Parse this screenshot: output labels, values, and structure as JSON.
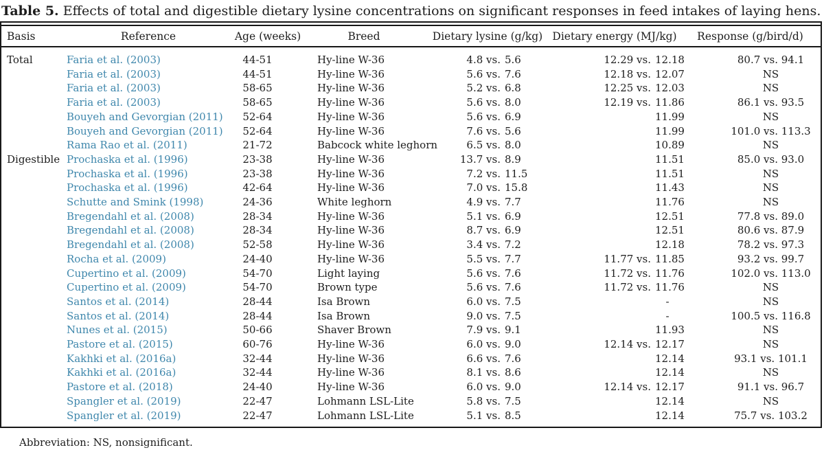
{
  "title": {
    "label": "Table 5.",
    "text": "Effects of total and digestible dietary lysine concentrations on significant responses in feed intakes of laying hens."
  },
  "columns": [
    "Basis",
    "Reference",
    "Age (weeks)",
    "Breed",
    "Dietary lysine (g/kg)",
    "Dietary energy (MJ/kg)",
    "Response (g/bird/d)"
  ],
  "rows": [
    {
      "basis": "Total",
      "reference": "Faria et al. (2003)",
      "age": "44-51",
      "breed": "Hy-line W-36",
      "lysine": "4.8 vs. 5.6",
      "energy": "12.29 vs. 12.18",
      "response": "80.7 vs. 94.1"
    },
    {
      "basis": "",
      "reference": "Faria et al. (2003)",
      "age": "44-51",
      "breed": "Hy-line W-36",
      "lysine": "5.6 vs. 7.6",
      "energy": "12.18 vs. 12.07",
      "response": "NS"
    },
    {
      "basis": "",
      "reference": "Faria et al. (2003)",
      "age": "58-65",
      "breed": "Hy-line W-36",
      "lysine": "5.2 vs. 6.8",
      "energy": "12.25 vs. 12.03",
      "response": "NS"
    },
    {
      "basis": "",
      "reference": "Faria et al. (2003)",
      "age": "58-65",
      "breed": "Hy-line W-36",
      "lysine": "5.6 vs. 8.0",
      "energy": "12.19 vs. 11.86",
      "response": "86.1 vs. 93.5"
    },
    {
      "basis": "",
      "reference": "Bouyeh and Gevorgian (2011)",
      "age": "52-64",
      "breed": "Hy-line W-36",
      "lysine": "5.6 vs. 6.9",
      "energy": "11.99",
      "response": "NS"
    },
    {
      "basis": "",
      "reference": "Bouyeh and Gevorgian (2011)",
      "age": "52-64",
      "breed": "Hy-line W-36",
      "lysine": "7.6 vs. 5.6",
      "energy": "11.99",
      "response": "101.0 vs. 113.3"
    },
    {
      "basis": "",
      "reference": "Rama Rao et al. (2011)",
      "age": "21-72",
      "breed": "Babcock white leghorn",
      "lysine": "6.5 vs. 8.0",
      "energy": "10.89",
      "response": "NS"
    },
    {
      "basis": "Digestible",
      "reference": "Prochaska et al. (1996)",
      "age": "23-38",
      "breed": "Hy-line W-36",
      "lysine": "13.7 vs. 8.9",
      "energy": "11.51",
      "response": "85.0 vs. 93.0"
    },
    {
      "basis": "",
      "reference": "Prochaska et al. (1996)",
      "age": "23-38",
      "breed": "Hy-line W-36",
      "lysine": "7.2 vs. 11.5",
      "energy": "11.51",
      "response": "NS"
    },
    {
      "basis": "",
      "reference": "Prochaska et al. (1996)",
      "age": "42-64",
      "breed": "Hy-line W-36",
      "lysine": "7.0 vs. 15.8",
      "energy": "11.43",
      "response": "NS"
    },
    {
      "basis": "",
      "reference": "Schutte and Smink (1998)",
      "age": "24-36",
      "breed": "White leghorn",
      "lysine": "4.9 vs. 7.7",
      "energy": "11.76",
      "response": "NS"
    },
    {
      "basis": "",
      "reference": "Bregendahl et al. (2008)",
      "age": "28-34",
      "breed": "Hy-line W-36",
      "lysine": "5.1 vs. 6.9",
      "energy": "12.51",
      "response": "77.8 vs. 89.0"
    },
    {
      "basis": "",
      "reference": "Bregendahl et al. (2008)",
      "age": "28-34",
      "breed": "Hy-line W-36",
      "lysine": "8.7 vs. 6.9",
      "energy": "12.51",
      "response": "80.6 vs. 87.9"
    },
    {
      "basis": "",
      "reference": "Bregendahl et al. (2008)",
      "age": "52-58",
      "breed": "Hy-line W-36",
      "lysine": "3.4 vs. 7.2",
      "energy": "12.18",
      "response": "78.2 vs. 97.3"
    },
    {
      "basis": "",
      "reference": "Rocha et al. (2009)",
      "age": "24-40",
      "breed": "Hy-line W-36",
      "lysine": "5.5 vs. 7.7",
      "energy": "11.77 vs. 11.85",
      "response": "93.2 vs. 99.7"
    },
    {
      "basis": "",
      "reference": "Cupertino et al. (2009)",
      "age": "54-70",
      "breed": "Light laying",
      "lysine": "5.6 vs. 7.6",
      "energy": "11.72 vs. 11.76",
      "response": "102.0 vs. 113.0"
    },
    {
      "basis": "",
      "reference": "Cupertino et al. (2009)",
      "age": "54-70",
      "breed": "Brown type",
      "lysine": "5.6 vs. 7.6",
      "energy": "11.72 vs. 11.76",
      "response": "NS"
    },
    {
      "basis": "",
      "reference": "Santos et al. (2014)",
      "age": "28-44",
      "breed": "Isa Brown",
      "lysine": "6.0 vs. 7.5",
      "energy": "-",
      "response": "NS"
    },
    {
      "basis": "",
      "reference": "Santos et al. (2014)",
      "age": "28-44",
      "breed": "Isa Brown",
      "lysine": "9.0 vs. 7.5",
      "energy": "-",
      "response": "100.5 vs. 116.8"
    },
    {
      "basis": "",
      "reference": "Nunes et al. (2015)",
      "age": "50-66",
      "breed": "Shaver Brown",
      "lysine": "7.9 vs. 9.1",
      "energy": "11.93",
      "response": "NS"
    },
    {
      "basis": "",
      "reference": "Pastore et al. (2015)",
      "age": "60-76",
      "breed": "Hy-line W-36",
      "lysine": "6.0 vs. 9.0",
      "energy": "12.14 vs. 12.17",
      "response": "NS"
    },
    {
      "basis": "",
      "reference": "Kakhki et al. (2016a)",
      "age": "32-44",
      "breed": "Hy-line W-36",
      "lysine": "6.6 vs. 7.6",
      "energy": "12.14",
      "response": "93.1 vs. 101.1"
    },
    {
      "basis": "",
      "reference": "Kakhki et al. (2016a)",
      "age": "32-44",
      "breed": "Hy-line W-36",
      "lysine": "8.1 vs. 8.6",
      "energy": "12.14",
      "response": "NS"
    },
    {
      "basis": "",
      "reference": "Pastore et al. (2018)",
      "age": "24-40",
      "breed": "Hy-line W-36",
      "lysine": "6.0 vs. 9.0",
      "energy": "12.14 vs. 12.17",
      "response": "91.1 vs. 96.7"
    },
    {
      "basis": "",
      "reference": "Spangler et al. (2019)",
      "age": "22-47",
      "breed": "Lohmann LSL-Lite",
      "lysine": "5.8 vs. 7.5",
      "energy": "12.14",
      "response": "NS"
    },
    {
      "basis": "",
      "reference": "Spangler et al. (2019)",
      "age": "22-47",
      "breed": "Lohmann LSL-Lite",
      "lysine": "5.1 vs. 8.5",
      "energy": "12.14",
      "response": "75.7 vs. 103.2"
    }
  ],
  "footnote": "Abbreviation: NS, nonsignificant.",
  "colors": {
    "link": "#3f87ac",
    "text": "#1d1d1d",
    "rule": "#161616"
  }
}
